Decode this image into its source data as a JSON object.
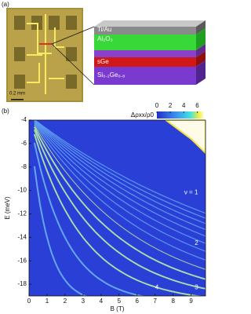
{
  "panel_a": {
    "label": "(a)",
    "scale_bar": "0.2 mm",
    "layers": [
      "Ti/Au",
      "Al₂O₃",
      "sGe",
      "Si₀.₂Ge₀.₈"
    ]
  },
  "panel_b_label": "(b)",
  "chart_data": {
    "type": "heatmap",
    "xlabel": "B (T)",
    "ylabel": "E (meV)",
    "xlim": [
      0,
      9.8
    ],
    "xticks": [
      0,
      1,
      2,
      3,
      4,
      5,
      6,
      7,
      8,
      9
    ],
    "ylim": [
      -19,
      -4
    ],
    "yticks": [
      -4,
      -6,
      -8,
      -10,
      -12,
      -14,
      -16,
      -18
    ],
    "colorbar_label": "Δρxx/ρ0",
    "clim": [
      0,
      7
    ],
    "cticks": [
      0,
      2,
      4,
      6
    ],
    "annotations": [
      "ν = 1",
      "2",
      "3",
      "4"
    ]
  }
}
